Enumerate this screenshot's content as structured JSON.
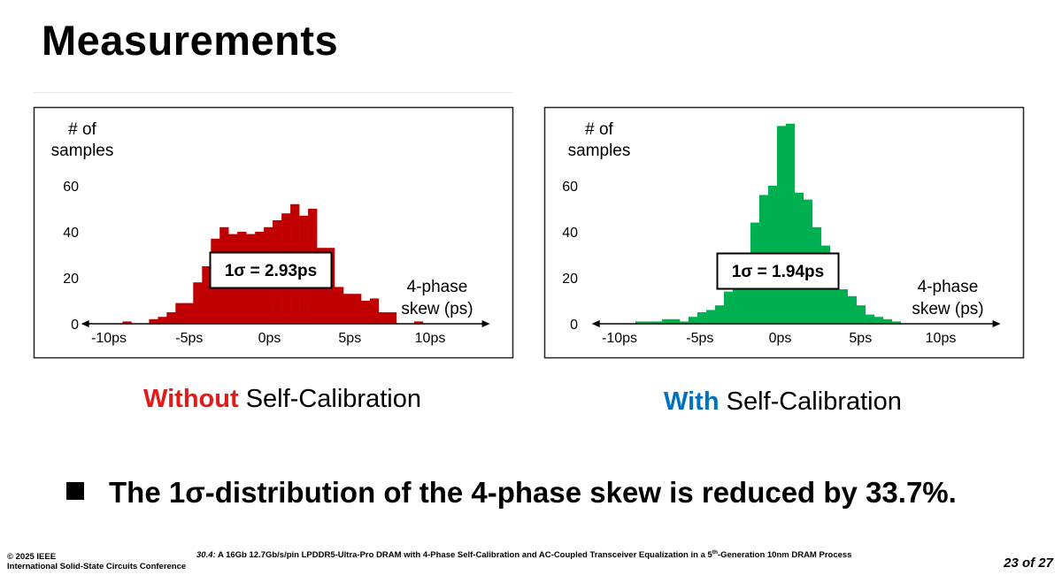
{
  "slide": {
    "title": "Measurements",
    "bullet": "The 1σ-distribution of the 4-phase skew is reduced by 33.7%.",
    "captions": [
      {
        "keyword": "Without",
        "rest": " Self-Calibration",
        "keyword_color": "#e21a1a"
      },
      {
        "keyword": "With",
        "rest": " Self-Calibration",
        "keyword_color": "#0070c0"
      }
    ]
  },
  "footer": {
    "copyright": "© 2025 IEEE",
    "conference": "International Solid-State Circuits Conference",
    "session": "30.4:",
    "paper_title_a": " A 16Gb 12.7Gb/s/pin LPDDR5-Ultra-Pro DRAM with 4-Phase Self-Calibration and AC-Coupled Transceiver Equalization in a 5",
    "paper_title_sup": "th",
    "paper_title_b": "-Generation 10nm DRAM Process",
    "page": "23 of 27"
  },
  "chart_data": [
    {
      "type": "bar",
      "ylabel": "# of samples",
      "xlabel": "4-phase skew (ps)",
      "annotation": "1σ = 2.93ps",
      "color": "#c00000",
      "xlim": [
        -12,
        14
      ],
      "ylim": [
        0,
        65
      ],
      "yticks": [
        0,
        20,
        40,
        60
      ],
      "ytick_labels": [
        "0",
        "20",
        "40",
        "60"
      ],
      "xticks": [
        -10,
        -5,
        0,
        5,
        10
      ],
      "xtick_labels": [
        "-10ps",
        "-5ps",
        "0ps",
        "5ps",
        "10ps"
      ],
      "bin_width": 0.55,
      "bin_starts": [
        -9.15,
        -7.5,
        -6.95,
        -6.4,
        -5.85,
        -5.3,
        -4.75,
        -4.2,
        -3.65,
        -3.1,
        -2.55,
        -2.0,
        -1.45,
        -0.9,
        -0.35,
        0.2,
        0.75,
        1.3,
        1.85,
        2.4,
        2.95,
        3.5,
        4.05,
        4.6,
        5.15,
        5.7,
        6.25,
        6.8,
        7.35,
        9.0
      ],
      "values": [
        1,
        2,
        3,
        5,
        9,
        9,
        18,
        25,
        37,
        42,
        39,
        40,
        39,
        40,
        42,
        45,
        48,
        52,
        47,
        50,
        33,
        33,
        16,
        13,
        13,
        10,
        11,
        5,
        5,
        1
      ]
    },
    {
      "type": "bar",
      "ylabel": "# of samples",
      "xlabel": "4-phase skew (ps)",
      "annotation": "1σ = 1.94ps",
      "color": "#00b050",
      "xlim": [
        -12,
        14
      ],
      "ylim": [
        0,
        65
      ],
      "yticks": [
        0,
        20,
        40,
        60
      ],
      "ytick_labels": [
        "0",
        "20",
        "40",
        "60"
      ],
      "xticks": [
        -10,
        -5,
        0,
        5,
        10
      ],
      "xtick_labels": [
        "-10ps",
        "-5ps",
        "0ps",
        "5ps",
        "10ps"
      ],
      "bin_width": 0.55,
      "bin_starts": [
        -9.0,
        -8.45,
        -7.9,
        -7.35,
        -6.8,
        -6.25,
        -5.7,
        -5.15,
        -4.6,
        -4.05,
        -3.5,
        -2.95,
        -2.4,
        -1.85,
        -1.3,
        -0.75,
        -0.2,
        0.35,
        0.9,
        1.45,
        2.0,
        2.55,
        3.1,
        3.65,
        4.2,
        4.75,
        5.3,
        5.85,
        6.4,
        6.95
      ],
      "values": [
        1,
        1,
        1,
        2,
        2,
        1,
        3,
        5,
        6,
        8,
        14,
        17,
        26,
        44,
        56,
        60,
        86,
        87,
        57,
        54,
        42,
        34,
        31,
        15,
        12,
        8,
        4,
        3,
        2,
        1
      ]
    }
  ]
}
